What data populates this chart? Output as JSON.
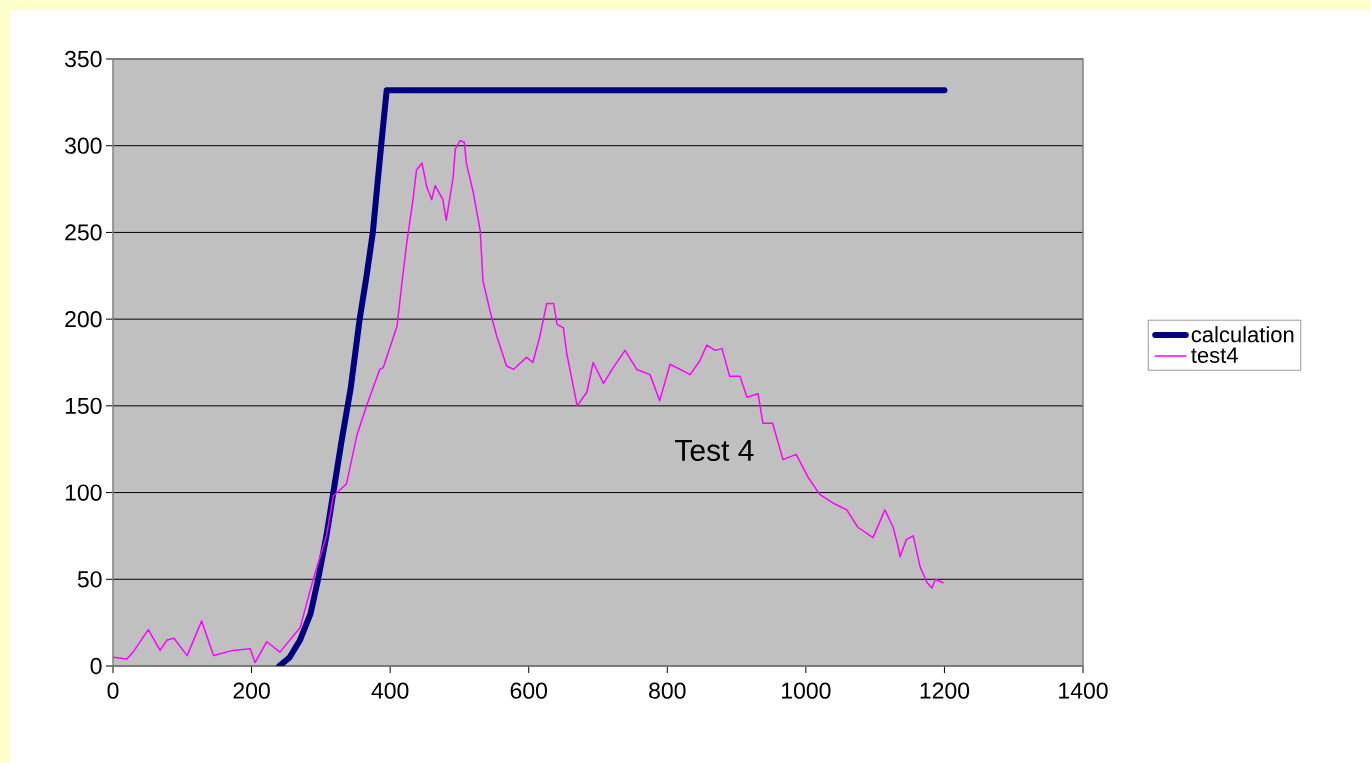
{
  "chart_data": {
    "type": "line",
    "xlim": [
      0,
      1400
    ],
    "ylim": [
      0,
      350
    ],
    "xticks": [
      0,
      200,
      400,
      600,
      800,
      1000,
      1200,
      1400
    ],
    "yticks": [
      0,
      50,
      100,
      150,
      200,
      250,
      300,
      350
    ],
    "grid": "y",
    "legend": "right",
    "marker": "none",
    "annotations": [
      "Test 4"
    ],
    "series": [
      {
        "name": "calculation",
        "color": "#000080",
        "x": [
          240,
          255,
          270,
          285,
          296,
          308,
          318,
          330,
          343,
          356,
          366,
          375,
          381,
          387,
          392,
          395,
          1200
        ],
        "values": [
          0,
          5,
          15,
          30,
          50,
          75,
          100,
          130,
          160,
          200,
          225,
          250,
          275,
          300,
          320,
          332,
          332
        ]
      },
      {
        "name": "test4",
        "color": "#ff00ff",
        "x": [
          0,
          20,
          29,
          51,
          68,
          78,
          88,
          107,
          128,
          145,
          173,
          198,
          205,
          222,
          241,
          245,
          270,
          289,
          308,
          318,
          337,
          352,
          366,
          385,
          390,
          410,
          417,
          424,
          433,
          438,
          446,
          453,
          460,
          465,
          476,
          481,
          491,
          494,
          501,
          507,
          510,
          520,
          530,
          534,
          544,
          554,
          568,
          578,
          597,
          606,
          616,
          626,
          636,
          641,
          650,
          655,
          670,
          684,
          693,
          708,
          722,
          739,
          756,
          775,
          789,
          804,
          833,
          847,
          857,
          869,
          879,
          890,
          905,
          915,
          931,
          938,
          952,
          967,
          986,
          1003,
          1020,
          1039,
          1059,
          1075,
          1097,
          1114,
          1126,
          1133,
          1136,
          1145,
          1155,
          1165,
          1175,
          1182,
          1187,
          1198
        ],
        "values": [
          5,
          4,
          8,
          21,
          9,
          15,
          16,
          6,
          26,
          6,
          9,
          10,
          2,
          14,
          8,
          10,
          22,
          50,
          75,
          98,
          105,
          133,
          150,
          171,
          172,
          196,
          221,
          244,
          269,
          286,
          290,
          276,
          269,
          277,
          269,
          257,
          282,
          298,
          303,
          302,
          290,
          273,
          251,
          222,
          205,
          190,
          173,
          171,
          178,
          175,
          190,
          209,
          209,
          197,
          195,
          180,
          150,
          158,
          175,
          163,
          172,
          182,
          171,
          168,
          153,
          174,
          168,
          176,
          185,
          182,
          183,
          167,
          167,
          155,
          157,
          140,
          140,
          119,
          122,
          109,
          99,
          94,
          90,
          80,
          74,
          90,
          80,
          69,
          63,
          73,
          75,
          57,
          48,
          45,
          50,
          48
        ]
      }
    ]
  }
}
